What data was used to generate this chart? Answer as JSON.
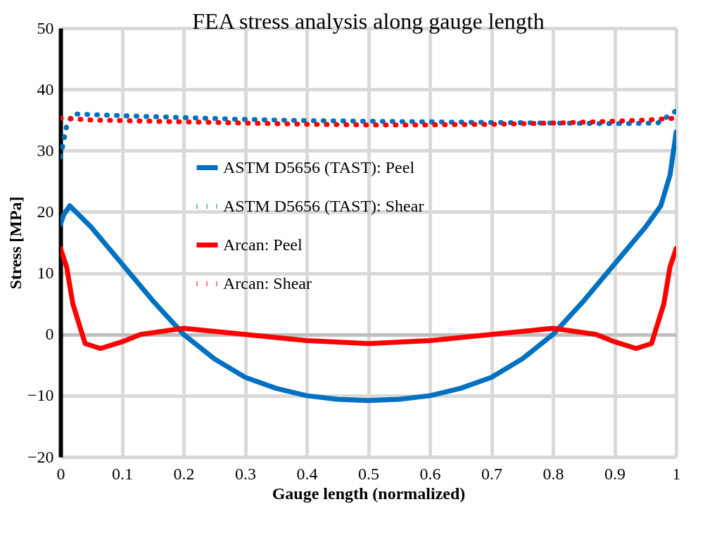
{
  "chart_data": {
    "type": "line",
    "title": "FEA stress analysis along gauge length",
    "xlabel": "Gauge length (normalized)",
    "ylabel": "Stress [MPa]",
    "xlim": [
      0,
      1
    ],
    "xticks": [
      0,
      0.1,
      0.2,
      0.3,
      0.4,
      0.5,
      0.6,
      0.7,
      0.8,
      0.9,
      1
    ],
    "ylim": [
      -20,
      50
    ],
    "yticks": [
      -20,
      -10,
      0,
      10,
      20,
      30,
      40,
      50
    ],
    "grid": true,
    "legend": "top",
    "series": [
      {
        "name": "ASTM D5656 (TAST): Peel",
        "color": "#0070c0",
        "line_style": "solid",
        "x": [
          0,
          0.005,
          0.015,
          0.05,
          0.1,
          0.15,
          0.2,
          0.25,
          0.3,
          0.35,
          0.4,
          0.45,
          0.5,
          0.55,
          0.6,
          0.65,
          0.7,
          0.75,
          0.8,
          0.85,
          0.9,
          0.95,
          0.975,
          0.99,
          1
        ],
        "values": [
          18,
          19.5,
          21,
          17.5,
          11.5,
          5.5,
          0,
          -4,
          -7,
          -8.8,
          -10,
          -10.6,
          -10.8,
          -10.6,
          -10,
          -8.8,
          -7,
          -4,
          0,
          5.5,
          11.5,
          17.5,
          21,
          26,
          33
        ]
      },
      {
        "name": "ASTM D5656 (TAST): Shear",
        "color": "#0070c0",
        "line_style": "dotted",
        "x": [
          0,
          0.005,
          0.01,
          0.02,
          0.1,
          0.2,
          0.3,
          0.4,
          0.5,
          0.6,
          0.7,
          0.8,
          0.9,
          0.97,
          1
        ],
        "values": [
          29,
          31.5,
          34,
          36,
          35.7,
          35.4,
          35.1,
          34.9,
          34.8,
          34.7,
          34.6,
          34.5,
          34.4,
          34.5,
          36.5
        ]
      },
      {
        "name": "Arcan: Peel",
        "color": "#ff0000",
        "line_style": "solid",
        "x": [
          0,
          0.01,
          0.02,
          0.04,
          0.065,
          0.1,
          0.13,
          0.2,
          0.3,
          0.4,
          0.5,
          0.6,
          0.7,
          0.8,
          0.87,
          0.9,
          0.935,
          0.96,
          0.98,
          0.99,
          1
        ],
        "values": [
          14,
          11,
          5,
          -1.5,
          -2.3,
          -1.2,
          0,
          1,
          0,
          -1,
          -1.5,
          -1,
          0,
          1,
          0,
          -1.2,
          -2.3,
          -1.5,
          5,
          11,
          14
        ]
      },
      {
        "name": "Arcan: Shear",
        "color": "#ff0000",
        "line_style": "dotted",
        "x": [
          0,
          0.05,
          0.1,
          0.2,
          0.3,
          0.4,
          0.5,
          0.6,
          0.7,
          0.8,
          0.9,
          0.95,
          1
        ],
        "values": [
          35.3,
          35,
          34.9,
          34.7,
          34.5,
          34.3,
          34.2,
          34.2,
          34.3,
          34.5,
          34.8,
          35,
          35.3
        ]
      }
    ]
  }
}
